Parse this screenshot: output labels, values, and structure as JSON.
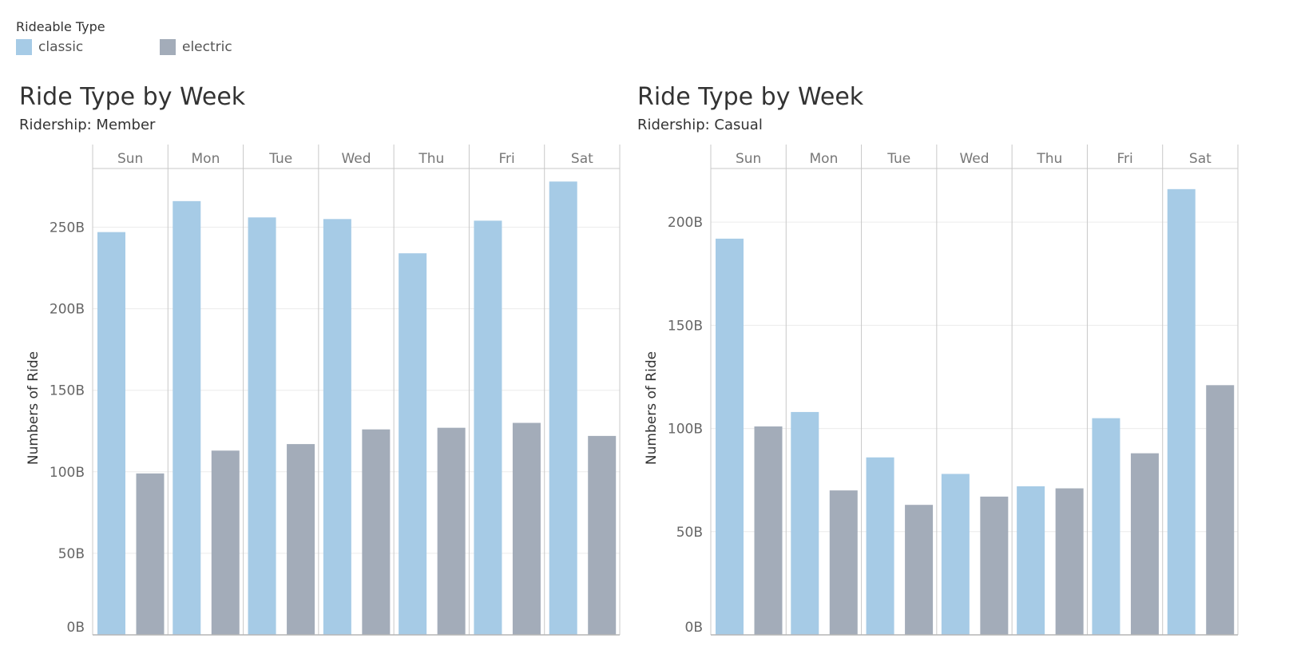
{
  "legend": {
    "title": "Rideable Type",
    "items": [
      {
        "label": "classic",
        "color": "#a6cbe6"
      },
      {
        "label": "electric",
        "color": "#a3acb9"
      }
    ]
  },
  "chart_data": [
    {
      "type": "bar",
      "title": "Ride Type by Week",
      "subtitle": "Ridership: Member",
      "ylabel": "Numbers of Ride",
      "ylim": [
        0,
        286
      ],
      "yticks": [
        0,
        50,
        100,
        150,
        200,
        250
      ],
      "ytick_labels": [
        "0B",
        "50B",
        "100B",
        "150B",
        "200B",
        "250B"
      ],
      "categories": [
        "Sun",
        "Mon",
        "Tue",
        "Wed",
        "Thu",
        "Fri",
        "Sat"
      ],
      "series": [
        {
          "name": "classic",
          "color": "#a6cbe6",
          "values": [
            247,
            266,
            256,
            255,
            234,
            254,
            278
          ]
        },
        {
          "name": "electric",
          "color": "#a3acb9",
          "values": [
            99,
            113,
            117,
            126,
            127,
            130,
            122
          ]
        }
      ],
      "grid": true
    },
    {
      "type": "bar",
      "title": "Ride Type by Week",
      "subtitle": "Ridership: Casual",
      "ylabel": "Numbers of Ride",
      "ylim": [
        0,
        226
      ],
      "yticks": [
        0,
        50,
        100,
        150,
        200
      ],
      "ytick_labels": [
        "0B",
        "50B",
        "100B",
        "150B",
        "200B"
      ],
      "categories": [
        "Sun",
        "Mon",
        "Tue",
        "Wed",
        "Thu",
        "Fri",
        "Sat"
      ],
      "series": [
        {
          "name": "classic",
          "color": "#a6cbe6",
          "values": [
            192,
            108,
            86,
            78,
            72,
            105,
            216
          ]
        },
        {
          "name": "electric",
          "color": "#a3acb9",
          "values": [
            101,
            70,
            63,
            67,
            71,
            88,
            121
          ]
        }
      ],
      "grid": true
    }
  ]
}
